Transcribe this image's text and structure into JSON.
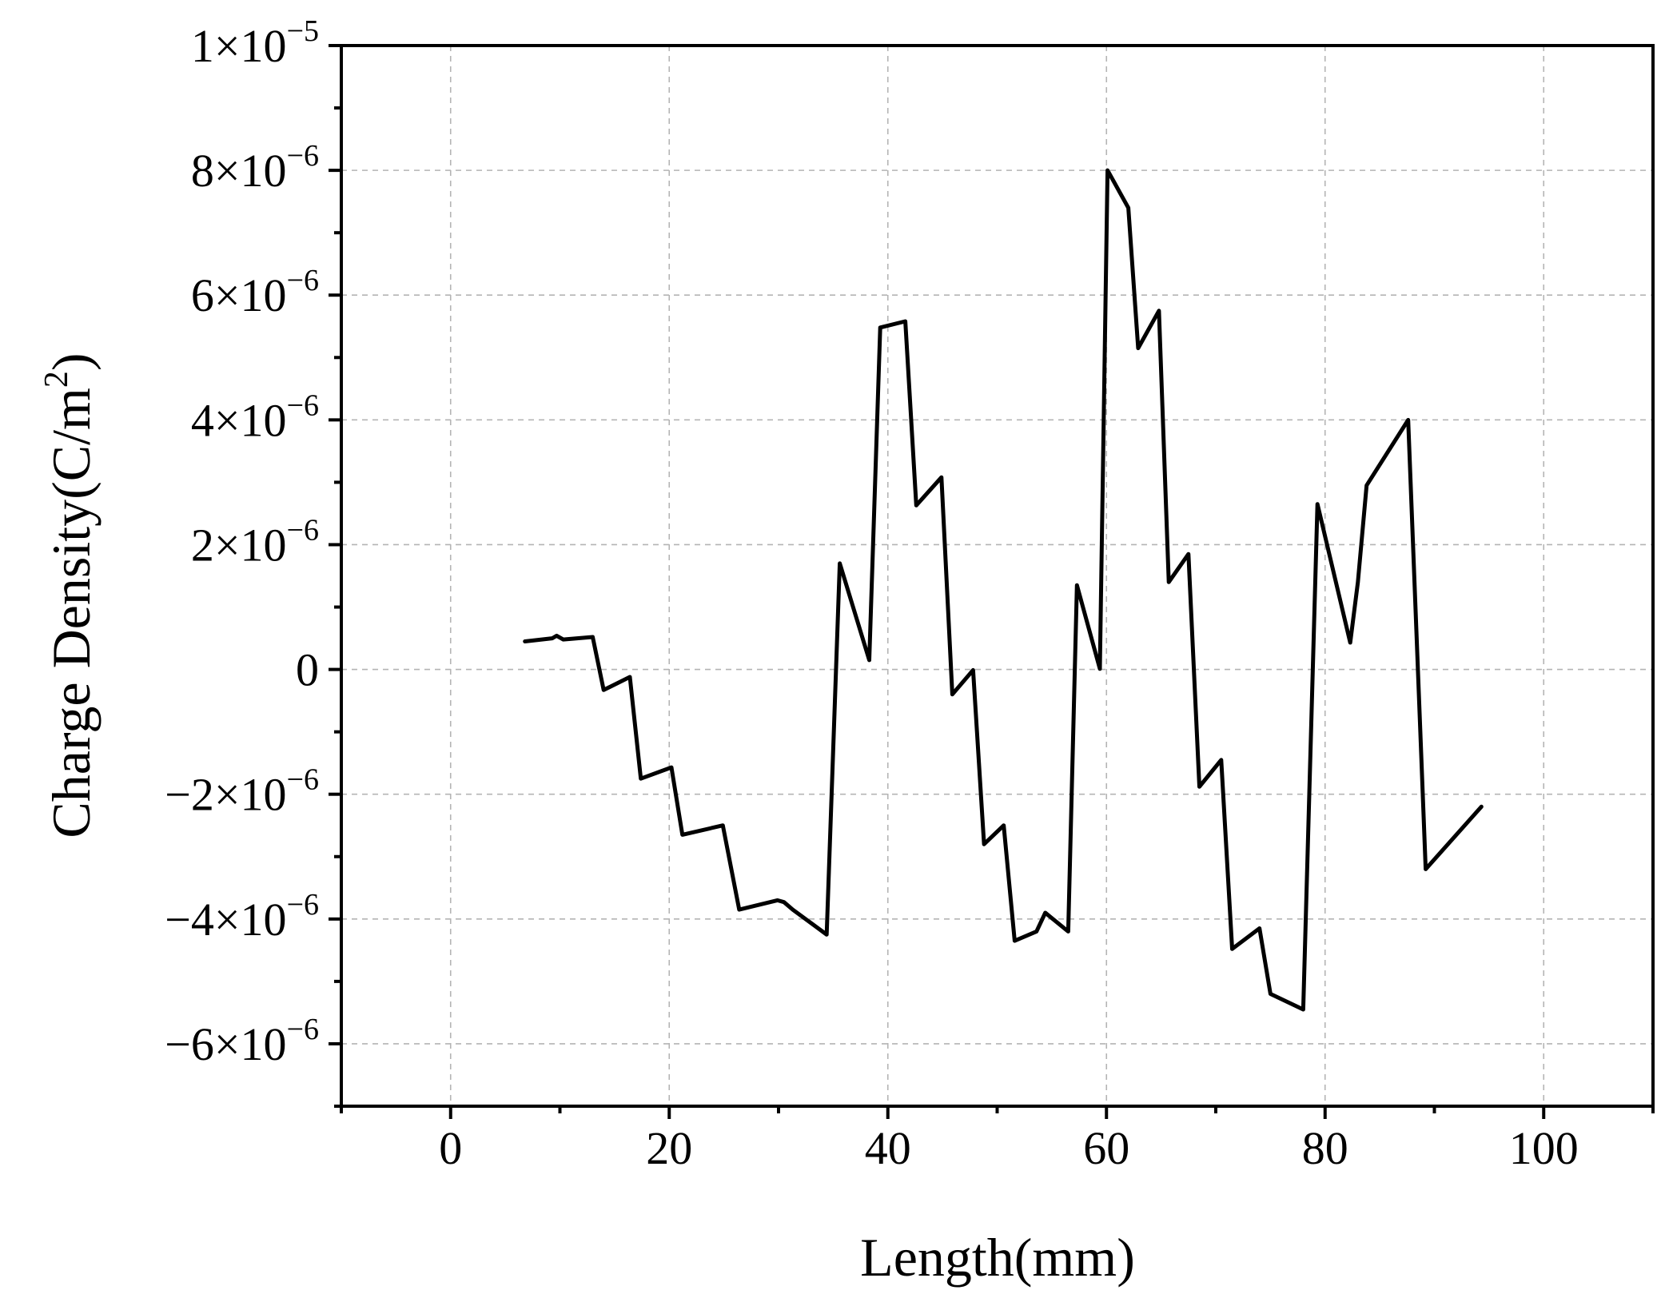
{
  "chart_data": {
    "type": "line",
    "title": "",
    "xlabel": "Length(mm)",
    "ylabel_main": "Charge Density(C/m",
    "ylabel_sup": "2",
    "ylabel_close": ")",
    "xlim": [
      -10,
      110
    ],
    "ylim": [
      -7e-06,
      1e-05
    ],
    "grid": true,
    "x_ticks": [
      {
        "value": 0,
        "label": "0"
      },
      {
        "value": 20,
        "label": "20"
      },
      {
        "value": 40,
        "label": "40"
      },
      {
        "value": 60,
        "label": "60"
      },
      {
        "value": 80,
        "label": "80"
      },
      {
        "value": 100,
        "label": "100"
      }
    ],
    "y_ticks": [
      {
        "value": -6e-06,
        "sign": "−",
        "mantissa": "6×10",
        "exponent": "−6"
      },
      {
        "value": -4e-06,
        "sign": "−",
        "mantissa": "4×10",
        "exponent": "−6"
      },
      {
        "value": -2e-06,
        "sign": "−",
        "mantissa": "2×10",
        "exponent": "−6"
      },
      {
        "value": 0,
        "sign": "",
        "mantissa": "0",
        "exponent": ""
      },
      {
        "value": 2e-06,
        "sign": "",
        "mantissa": "2×10",
        "exponent": "−6"
      },
      {
        "value": 4e-06,
        "sign": "",
        "mantissa": "4×10",
        "exponent": "−6"
      },
      {
        "value": 6e-06,
        "sign": "",
        "mantissa": "6×10",
        "exponent": "−6"
      },
      {
        "value": 8e-06,
        "sign": "",
        "mantissa": "8×10",
        "exponent": "−6"
      },
      {
        "value": 1e-05,
        "sign": "",
        "mantissa": "1×10",
        "exponent": "−5"
      }
    ],
    "series": [
      {
        "color": "#000000",
        "x": [
          6.8,
          9.3,
          9.7,
          10.3,
          13.0,
          14.0,
          16.4,
          17.4,
          20.2,
          21.2,
          24.9,
          26.4,
          29.9,
          30.5,
          31.3,
          34.4,
          35.6,
          38.3,
          39.3,
          41.6,
          42.6,
          44.9,
          45.9,
          47.8,
          48.8,
          50.6,
          51.6,
          53.6,
          54.4,
          56.5,
          57.3,
          59.4,
          60.1,
          62.0,
          62.9,
          64.8,
          65.7,
          67.5,
          68.5,
          70.5,
          71.5,
          74.0,
          75.0,
          78.0,
          79.3,
          82.3,
          83.0,
          83.8,
          87.6,
          89.2,
          94.3
        ],
        "y": [
          4.5e-07,
          5e-07,
          5.4e-07,
          4.8e-07,
          5.2e-07,
          -3.3e-07,
          -1.2e-07,
          -1.75e-06,
          -1.57e-06,
          -2.65e-06,
          -2.5e-06,
          -3.85e-06,
          -3.7e-06,
          -3.73e-06,
          -3.85e-06,
          -4.25e-06,
          1.7e-06,
          1.5e-07,
          5.48e-06,
          5.58e-06,
          2.63e-06,
          3.08e-06,
          -4e-07,
          -1e-08,
          -2.8e-06,
          -2.5e-06,
          -4.35e-06,
          -4.2e-06,
          -3.9e-06,
          -4.2e-06,
          1.35e-06,
          1e-08,
          8e-06,
          7.4e-06,
          5.15e-06,
          5.75e-06,
          1.4e-06,
          1.85e-06,
          -1.88e-06,
          -1.45e-06,
          -4.48e-06,
          -4.15e-06,
          -5.2e-06,
          -5.45e-06,
          2.65e-06,
          4.3e-07,
          1.4e-06,
          2.95e-06,
          4e-06,
          -3.2e-06,
          -2.2e-06
        ]
      }
    ]
  }
}
